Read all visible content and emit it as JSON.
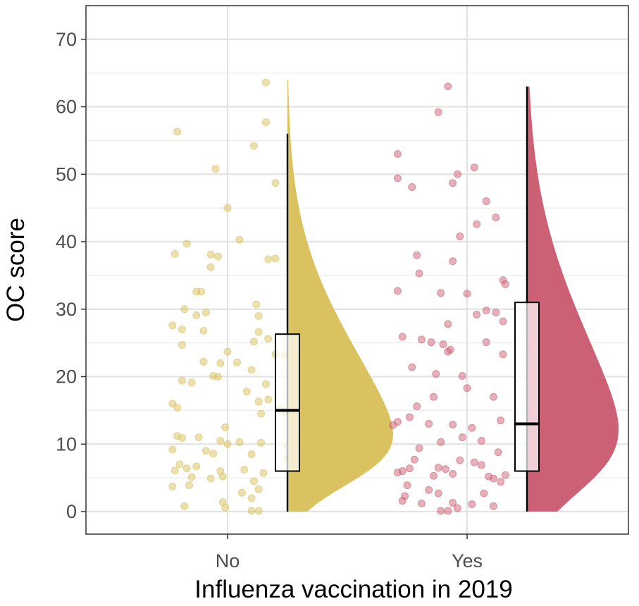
{
  "chart_data": {
    "type": "raincloud",
    "title": "",
    "xlabel": "Influenza vaccination in 2019",
    "ylabel": "OC score",
    "ylim": [
      -3.5,
      73
    ],
    "y_ticks": [
      0,
      10,
      20,
      30,
      40,
      50,
      60,
      70
    ],
    "categories": [
      "No",
      "Yes"
    ],
    "grid": true,
    "legend": "none",
    "series": [
      {
        "category": "No",
        "color": "#d9c25f",
        "box": {
          "min": 0,
          "q1": 6,
          "median": 15,
          "q3": 26.3,
          "max": 56
        },
        "density_max": 64,
        "points": [
          {
            "dx": 0.16,
            "y": 63.6
          },
          {
            "dx": -0.21,
            "y": 56.3
          },
          {
            "dx": 0.16,
            "y": 57.7
          },
          {
            "dx": 0.11,
            "y": 54.2
          },
          {
            "dx": -0.05,
            "y": 50.8
          },
          {
            "dx": 0.2,
            "y": 48.7
          },
          {
            "dx": 0.0,
            "y": 45
          },
          {
            "dx": 0.05,
            "y": 40.3
          },
          {
            "dx": -0.17,
            "y": 39.7
          },
          {
            "dx": -0.22,
            "y": 38.2
          },
          {
            "dx": -0.07,
            "y": 38.1
          },
          {
            "dx": -0.04,
            "y": 37.8
          },
          {
            "dx": 0.17,
            "y": 37.4
          },
          {
            "dx": 0.2,
            "y": 37.5
          },
          {
            "dx": -0.07,
            "y": 36.2
          },
          {
            "dx": -0.11,
            "y": 32.6
          },
          {
            "dx": -0.13,
            "y": 32.6
          },
          {
            "dx": 0.12,
            "y": 30.7
          },
          {
            "dx": -0.18,
            "y": 30.0
          },
          {
            "dx": -0.13,
            "y": 29.1
          },
          {
            "dx": -0.09,
            "y": 29.5
          },
          {
            "dx": 0.13,
            "y": 29.0
          },
          {
            "dx": -0.23,
            "y": 27.6
          },
          {
            "dx": -0.19,
            "y": 27.0
          },
          {
            "dx": -0.1,
            "y": 26.8
          },
          {
            "dx": 0.13,
            "y": 26.6
          },
          {
            "dx": 0.11,
            "y": 25.2
          },
          {
            "dx": 0.17,
            "y": 25.6
          },
          {
            "dx": -0.19,
            "y": 24.7
          },
          {
            "dx": 0.0,
            "y": 23.7
          },
          {
            "dx": 0.2,
            "y": 23.3
          },
          {
            "dx": 0.24,
            "y": 23.2
          },
          {
            "dx": -0.1,
            "y": 22.2
          },
          {
            "dx": -0.03,
            "y": 22.0
          },
          {
            "dx": 0.04,
            "y": 22.1
          },
          {
            "dx": 0.1,
            "y": 21.0
          },
          {
            "dx": -0.06,
            "y": 20.1
          },
          {
            "dx": -0.04,
            "y": 20.0
          },
          {
            "dx": -0.19,
            "y": 19.4
          },
          {
            "dx": -0.15,
            "y": 19.1
          },
          {
            "dx": 0.16,
            "y": 18.9
          },
          {
            "dx": 0.08,
            "y": 17.8
          },
          {
            "dx": 0.13,
            "y": 16.3
          },
          {
            "dx": 0.17,
            "y": 16.6
          },
          {
            "dx": -0.23,
            "y": 16.0
          },
          {
            "dx": -0.21,
            "y": 15.4
          },
          {
            "dx": 0.22,
            "y": 15.2
          },
          {
            "dx": 0.24,
            "y": 14.8
          },
          {
            "dx": 0.14,
            "y": 14.5
          },
          {
            "dx": -0.01,
            "y": 12.5
          },
          {
            "dx": -0.21,
            "y": 11.2
          },
          {
            "dx": -0.19,
            "y": 10.9
          },
          {
            "dx": -0.12,
            "y": 11.0
          },
          {
            "dx": -0.03,
            "y": 10.5
          },
          {
            "dx": 0.0,
            "y": 10.0
          },
          {
            "dx": 0.05,
            "y": 10.3
          },
          {
            "dx": 0.14,
            "y": 10.2
          },
          {
            "dx": 0.25,
            "y": 9.8
          },
          {
            "dx": -0.23,
            "y": 9.2
          },
          {
            "dx": -0.09,
            "y": 9.0
          },
          {
            "dx": -0.06,
            "y": 8.6
          },
          {
            "dx": 0.1,
            "y": 8.5
          },
          {
            "dx": 0.25,
            "y": 7.8
          },
          {
            "dx": -0.2,
            "y": 7.0
          },
          {
            "dx": -0.13,
            "y": 6.7
          },
          {
            "dx": -0.22,
            "y": 6.1
          },
          {
            "dx": -0.17,
            "y": 6.4
          },
          {
            "dx": -0.03,
            "y": 6.0
          },
          {
            "dx": 0.07,
            "y": 6.2
          },
          {
            "dx": 0.15,
            "y": 5.7
          },
          {
            "dx": -0.15,
            "y": 5.1
          },
          {
            "dx": -0.07,
            "y": 4.9
          },
          {
            "dx": -0.02,
            "y": 5.2
          },
          {
            "dx": 0.11,
            "y": 4.5
          },
          {
            "dx": -0.23,
            "y": 3.7
          },
          {
            "dx": -0.16,
            "y": 3.9
          },
          {
            "dx": 0.13,
            "y": 3.3
          },
          {
            "dx": 0.06,
            "y": 2.8
          },
          {
            "dx": 0.1,
            "y": 2.0
          },
          {
            "dx": -0.02,
            "y": 1.4
          },
          {
            "dx": -0.18,
            "y": 0.8
          },
          {
            "dx": -0.01,
            "y": 0.6
          },
          {
            "dx": 0.1,
            "y": 0.1
          },
          {
            "dx": 0.13,
            "y": 0.1
          }
        ]
      },
      {
        "category": "Yes",
        "color": "#cc6176",
        "box": {
          "min": 0,
          "q1": 6,
          "median": 13,
          "q3": 31,
          "max": 63
        },
        "density_max": 63,
        "points": [
          {
            "dx": -0.08,
            "y": 63.0
          },
          {
            "dx": -0.12,
            "y": 59.2
          },
          {
            "dx": -0.29,
            "y": 53.0
          },
          {
            "dx": -0.04,
            "y": 50.0
          },
          {
            "dx": 0.03,
            "y": 51.0
          },
          {
            "dx": -0.29,
            "y": 49.4
          },
          {
            "dx": -0.06,
            "y": 48.7
          },
          {
            "dx": -0.23,
            "y": 48.1
          },
          {
            "dx": 0.08,
            "y": 46.0
          },
          {
            "dx": 0.12,
            "y": 43.6
          },
          {
            "dx": 0.04,
            "y": 42.6
          },
          {
            "dx": -0.03,
            "y": 40.8
          },
          {
            "dx": -0.21,
            "y": 38.0
          },
          {
            "dx": -0.06,
            "y": 37.1
          },
          {
            "dx": -0.2,
            "y": 35.3
          },
          {
            "dx": 0.15,
            "y": 34.3
          },
          {
            "dx": 0.16,
            "y": 33.7
          },
          {
            "dx": -0.29,
            "y": 32.7
          },
          {
            "dx": -0.11,
            "y": 32.4
          },
          {
            "dx": 0.0,
            "y": 32.3
          },
          {
            "dx": 0.12,
            "y": 29.5
          },
          {
            "dx": 0.08,
            "y": 29.8
          },
          {
            "dx": 0.04,
            "y": 29.2
          },
          {
            "dx": 0.15,
            "y": 28.2
          },
          {
            "dx": -0.08,
            "y": 27.8
          },
          {
            "dx": -0.27,
            "y": 25.9
          },
          {
            "dx": -0.19,
            "y": 25.5
          },
          {
            "dx": -0.15,
            "y": 25.1
          },
          {
            "dx": -0.1,
            "y": 24.8
          },
          {
            "dx": -0.07,
            "y": 24.0
          },
          {
            "dx": -0.08,
            "y": 23.7
          },
          {
            "dx": 0.08,
            "y": 25.1
          },
          {
            "dx": 0.15,
            "y": 23.3
          },
          {
            "dx": -0.23,
            "y": 21.4
          },
          {
            "dx": -0.13,
            "y": 20.4
          },
          {
            "dx": -0.02,
            "y": 20.1
          },
          {
            "dx": 0.0,
            "y": 18.3
          },
          {
            "dx": -0.14,
            "y": 17.0
          },
          {
            "dx": 0.11,
            "y": 17.0
          },
          {
            "dx": -0.21,
            "y": 15.6
          },
          {
            "dx": -0.29,
            "y": 13.3
          },
          {
            "dx": -0.24,
            "y": 14.0
          },
          {
            "dx": -0.31,
            "y": 12.8
          },
          {
            "dx": -0.16,
            "y": 13.0
          },
          {
            "dx": -0.06,
            "y": 12.9
          },
          {
            "dx": 0.02,
            "y": 12.4
          },
          {
            "dx": 0.14,
            "y": 13.5
          },
          {
            "dx": -0.11,
            "y": 10.3
          },
          {
            "dx": -0.02,
            "y": 11.0
          },
          {
            "dx": 0.06,
            "y": 10.5
          },
          {
            "dx": -0.2,
            "y": 9.4
          },
          {
            "dx": 0.13,
            "y": 8.8
          },
          {
            "dx": -0.22,
            "y": 7.7
          },
          {
            "dx": -0.03,
            "y": 7.6
          },
          {
            "dx": 0.03,
            "y": 7.3
          },
          {
            "dx": 0.06,
            "y": 6.9
          },
          {
            "dx": -0.24,
            "y": 6.4
          },
          {
            "dx": -0.27,
            "y": 6.0
          },
          {
            "dx": -0.29,
            "y": 5.8
          },
          {
            "dx": -0.12,
            "y": 6.5
          },
          {
            "dx": -0.09,
            "y": 6.3
          },
          {
            "dx": -0.06,
            "y": 5.6
          },
          {
            "dx": -0.14,
            "y": 5.3
          },
          {
            "dx": 0.09,
            "y": 5.2
          },
          {
            "dx": 0.16,
            "y": 5.4
          },
          {
            "dx": 0.11,
            "y": 4.9
          },
          {
            "dx": 0.14,
            "y": 4.4
          },
          {
            "dx": -0.25,
            "y": 3.9
          },
          {
            "dx": -0.16,
            "y": 3.2
          },
          {
            "dx": -0.12,
            "y": 2.7
          },
          {
            "dx": -0.26,
            "y": 2.3
          },
          {
            "dx": -0.19,
            "y": 1.2
          },
          {
            "dx": -0.27,
            "y": 1.6
          },
          {
            "dx": -0.06,
            "y": 1.3
          },
          {
            "dx": 0.02,
            "y": 1.1
          },
          {
            "dx": 0.07,
            "y": 2.7
          },
          {
            "dx": -0.04,
            "y": 0.5
          },
          {
            "dx": 0.11,
            "y": 0.8
          },
          {
            "dx": -0.11,
            "y": 0.1
          },
          {
            "dx": -0.08,
            "y": 0.1
          }
        ]
      }
    ]
  }
}
